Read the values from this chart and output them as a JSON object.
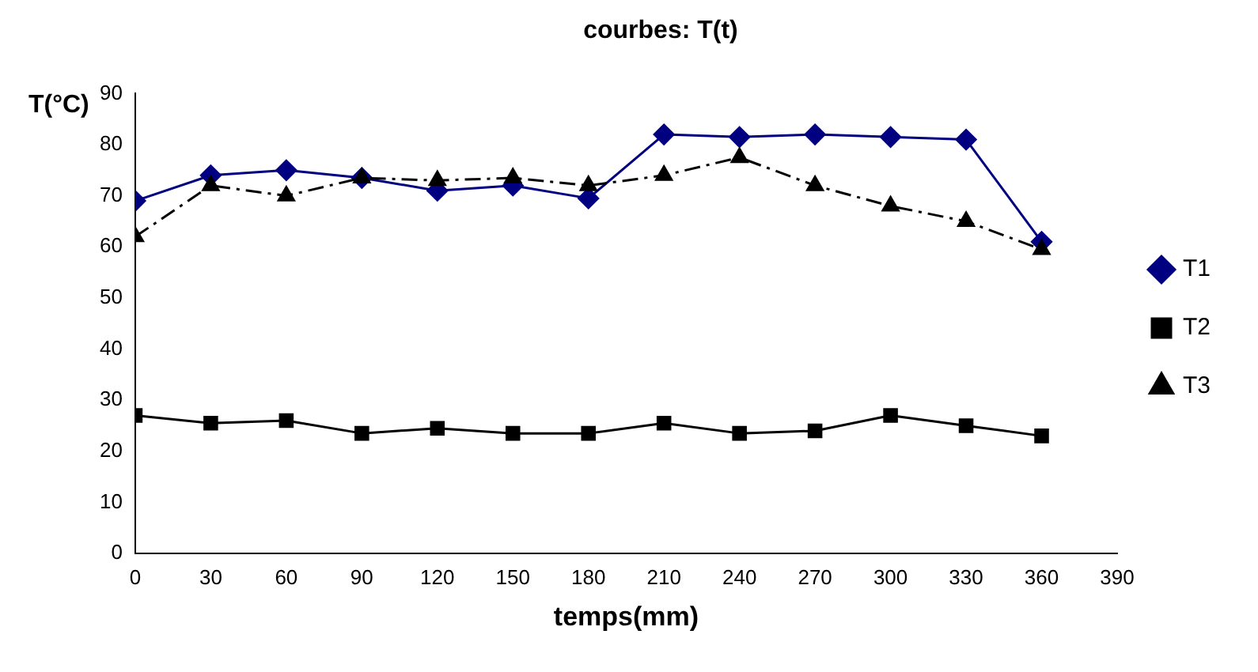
{
  "chart_data": {
    "type": "line",
    "title": "courbes: T(t)",
    "xlabel": "temps(mm)",
    "ylabel": "T(°C)",
    "x": [
      0,
      30,
      60,
      90,
      120,
      150,
      180,
      210,
      240,
      270,
      300,
      330,
      360
    ],
    "series": [
      {
        "name": "T1",
        "color": "#000080",
        "marker": "diamond",
        "line_style": "solid",
        "values": [
          69,
          74,
          75,
          73.5,
          71,
          72,
          69.5,
          82,
          81.5,
          82,
          81.5,
          81,
          61
        ]
      },
      {
        "name": "T2",
        "color": "#000000",
        "marker": "square",
        "line_style": "solid",
        "values": [
          27,
          25.5,
          26,
          23.5,
          24.5,
          23.5,
          23.5,
          25.5,
          23.5,
          24,
          27,
          25,
          23
        ]
      },
      {
        "name": "T3",
        "color": "#000000",
        "marker": "triangle",
        "line_style": "dashed",
        "values": [
          62,
          72,
          70,
          73.5,
          73,
          73.5,
          72,
          74,
          77.5,
          72,
          68,
          65,
          59.5
        ]
      }
    ],
    "xlim": [
      0,
      390
    ],
    "xticks": [
      0,
      30,
      60,
      90,
      120,
      150,
      180,
      210,
      240,
      270,
      300,
      330,
      360,
      390
    ],
    "ylim": [
      0,
      90
    ],
    "yticks": [
      0,
      10,
      20,
      30,
      40,
      50,
      60,
      70,
      80,
      90
    ],
    "grid": false,
    "legend": "right"
  }
}
